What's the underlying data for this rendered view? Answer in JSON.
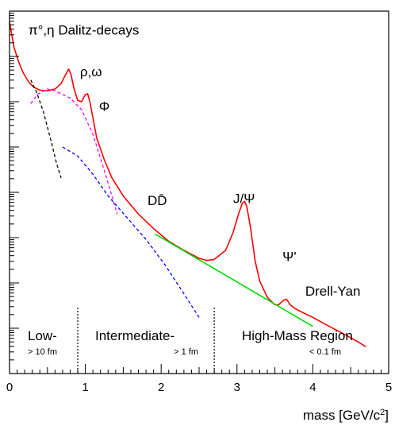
{
  "chart_data": {
    "type": "line",
    "title": "",
    "xlabel": "mass [GeV/c²]",
    "ylabel": "",
    "xlim": [
      0,
      5
    ],
    "ylim": [
      0,
      1
    ],
    "xticks": [
      "0",
      "1",
      "2",
      "3",
      "4",
      "5"
    ],
    "grid": false,
    "legend": "none",
    "y_axis_note": "logarithmic, unlabeled tick marks",
    "region_dividers_x": [
      0.9,
      2.7
    ],
    "regions": [
      {
        "name": "Low-",
        "scale": "> 10 fm"
      },
      {
        "name": "Intermediate-",
        "scale": "> 1 fm"
      },
      {
        "name": "High-Mass Region",
        "scale": "< 0.1 fm"
      }
    ],
    "annotations": [
      {
        "text": "π°,η Dalitz-decays",
        "x": 0.25,
        "y": 0.935
      },
      {
        "text": "ρ,ω",
        "x": 0.93,
        "y": 0.82
      },
      {
        "text": "Φ",
        "x": 1.18,
        "y": 0.725
      },
      {
        "text": "DD̄",
        "x": 1.82,
        "y": 0.465
      },
      {
        "text": "J/Ψ",
        "x": 2.95,
        "y": 0.47
      },
      {
        "text": "Ψ'",
        "x": 3.6,
        "y": 0.31
      },
      {
        "text": "Drell-Yan",
        "x": 3.9,
        "y": 0.215
      }
    ],
    "series": [
      {
        "color": "#ff0000",
        "style": "solid",
        "x": [
          0.0,
          0.06,
          0.12,
          0.18,
          0.25,
          0.32,
          0.4,
          0.5,
          0.6,
          0.68,
          0.74,
          0.78,
          0.81,
          0.85,
          0.9,
          0.95,
          1.0,
          1.03,
          1.06,
          1.1,
          1.15,
          1.25,
          1.35,
          1.5,
          1.7,
          1.9,
          2.1,
          2.3,
          2.5,
          2.6,
          2.7,
          2.85,
          2.95,
          3.02,
          3.07,
          3.1,
          3.13,
          3.18,
          3.24,
          3.3,
          3.4,
          3.5,
          3.55,
          3.6,
          3.64,
          3.66,
          3.7,
          3.76,
          3.85,
          4.0,
          4.2,
          4.4,
          4.6,
          4.7
        ],
        "y": [
          0.97,
          0.9,
          0.86,
          0.83,
          0.805,
          0.79,
          0.782,
          0.78,
          0.785,
          0.8,
          0.825,
          0.84,
          0.826,
          0.786,
          0.754,
          0.75,
          0.77,
          0.772,
          0.75,
          0.705,
          0.65,
          0.59,
          0.54,
          0.49,
          0.44,
          0.4,
          0.365,
          0.34,
          0.318,
          0.312,
          0.315,
          0.34,
          0.39,
          0.44,
          0.47,
          0.475,
          0.46,
          0.4,
          0.31,
          0.255,
          0.21,
          0.19,
          0.19,
          0.2,
          0.205,
          0.203,
          0.19,
          0.18,
          0.17,
          0.155,
          0.132,
          0.11,
          0.087,
          0.074
        ]
      },
      {
        "color": "#000000",
        "style": "dashed",
        "x": [
          0.28,
          0.36,
          0.45,
          0.55,
          0.62,
          0.68
        ],
        "y": [
          0.81,
          0.775,
          0.72,
          0.64,
          0.58,
          0.54
        ]
      },
      {
        "color": "#ff00ff",
        "style": "dashed",
        "x": [
          0.28,
          0.38,
          0.5,
          0.6,
          0.7,
          0.8,
          0.95,
          1.1,
          1.25,
          1.35,
          1.42
        ],
        "y": [
          0.745,
          0.772,
          0.785,
          0.78,
          0.77,
          0.76,
          0.728,
          0.66,
          0.56,
          0.49,
          0.44
        ]
      },
      {
        "color": "#0000ff",
        "style": "dashed",
        "x": [
          0.7,
          0.9,
          1.1,
          1.3,
          1.55,
          1.8,
          2.05,
          2.3,
          2.5
        ],
        "y": [
          0.625,
          0.6,
          0.55,
          0.49,
          0.43,
          0.37,
          0.3,
          0.22,
          0.155
        ]
      },
      {
        "color": "#00dd00",
        "style": "solid",
        "x": [
          1.92,
          4.0
        ],
        "y": [
          0.385,
          0.13
        ]
      }
    ]
  }
}
